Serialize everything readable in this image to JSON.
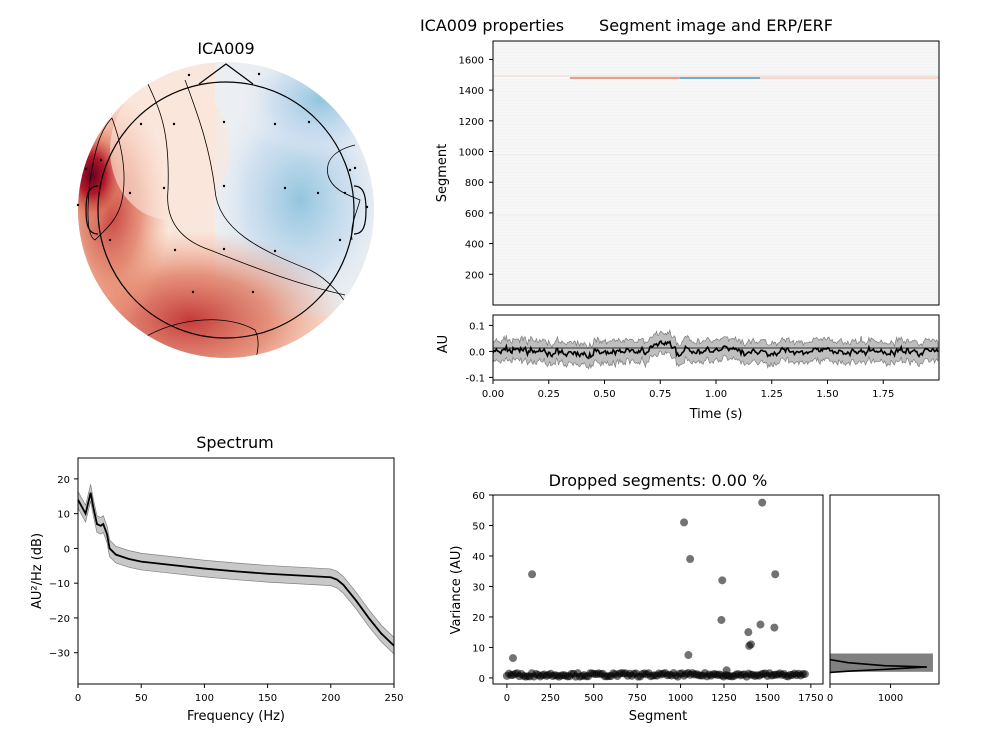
{
  "figure": {
    "suptitle": "ICA009 properties"
  },
  "colors": {
    "red": "#b2182b",
    "blue": "#2166ac",
    "line": "#000000",
    "band": "#bdbdbd"
  },
  "chart_data": [
    {
      "id": "topomap",
      "type": "heatmap",
      "title": "ICA009",
      "sensor_count": 26,
      "note": "scalp topography, red = positive, blue = negative"
    },
    {
      "id": "segment_image",
      "type": "heatmap",
      "title": "Segment image and ERP/ERF",
      "ylabel": "Segment",
      "ylim": [
        0,
        1720
      ],
      "yticks": [
        200,
        400,
        600,
        800,
        1000,
        1200,
        1400,
        1600
      ],
      "xlim": [
        0,
        2.0
      ]
    },
    {
      "id": "erp",
      "type": "line",
      "xlabel": "Time (s)",
      "ylabel": "AU",
      "xlim": [
        0,
        2.0
      ],
      "ylim": [
        -0.11,
        0.14
      ],
      "xticks": [
        "0.00",
        "0.25",
        "0.50",
        "0.75",
        "1.00",
        "1.25",
        "1.50",
        "1.75"
      ],
      "yticks": [
        "-0.1",
        "0.0",
        "0.1"
      ]
    },
    {
      "id": "spectrum",
      "type": "line",
      "title": "Spectrum",
      "xlabel": "Frequency (Hz)",
      "ylabel": "AU²/Hz (dB)",
      "xlim": [
        0,
        250
      ],
      "ylim": [
        -39,
        26
      ],
      "xticks": [
        "0",
        "50",
        "100",
        "150",
        "200",
        "250"
      ],
      "yticks": [
        "20",
        "10",
        "0",
        "−10",
        "−20",
        "−30"
      ],
      "x": [
        0,
        3,
        6,
        8,
        10,
        12,
        15,
        18,
        20,
        23,
        25,
        30,
        40,
        50,
        75,
        100,
        125,
        150,
        175,
        200,
        205,
        210,
        220,
        230,
        240,
        250
      ],
      "y": [
        14,
        12,
        10,
        13,
        16,
        12,
        7,
        6.5,
        7,
        4,
        0,
        -1.8,
        -3,
        -3.8,
        -4.8,
        -5.8,
        -6.6,
        -7.3,
        -7.8,
        -8.3,
        -9,
        -10.5,
        -15,
        -20,
        -24.5,
        -28
      ],
      "band": 2.4
    },
    {
      "id": "variance",
      "type": "scatter",
      "title": "Dropped segments: 0.00 %",
      "xlabel": "Segment",
      "ylabel": "Variance (AU)",
      "xlim": [
        -80,
        1820
      ],
      "ylim": [
        -2,
        60
      ],
      "xticks": [
        "0",
        "250",
        "500",
        "750",
        "1000",
        "1250",
        "1500",
        "1750"
      ],
      "yticks": [
        "0",
        "10",
        "20",
        "30",
        "40",
        "50",
        "60"
      ],
      "n_segments": 1720,
      "baseline": 1,
      "outliers": [
        [
          35,
          6.5
        ],
        [
          145,
          34
        ],
        [
          1020,
          51
        ],
        [
          1045,
          7.5
        ],
        [
          1055,
          39
        ],
        [
          1240,
          32
        ],
        [
          1235,
          19
        ],
        [
          1265,
          2.5
        ],
        [
          1390,
          15
        ],
        [
          1395,
          10.5
        ],
        [
          1405,
          11
        ],
        [
          1460,
          17.5
        ],
        [
          1470,
          57.5
        ],
        [
          1540,
          16.5
        ],
        [
          1545,
          34
        ]
      ]
    },
    {
      "id": "variance_hist",
      "type": "bar",
      "xlim": [
        0,
        1800
      ],
      "xticks": [
        "0",
        "1000"
      ],
      "ylim": [
        -2,
        60
      ],
      "bins": [
        [
          0,
          1720
        ],
        [
          2,
          10
        ],
        [
          3,
          4
        ],
        [
          4,
          2
        ],
        [
          5,
          1
        ],
        [
          6,
          1
        ]
      ]
    }
  ]
}
